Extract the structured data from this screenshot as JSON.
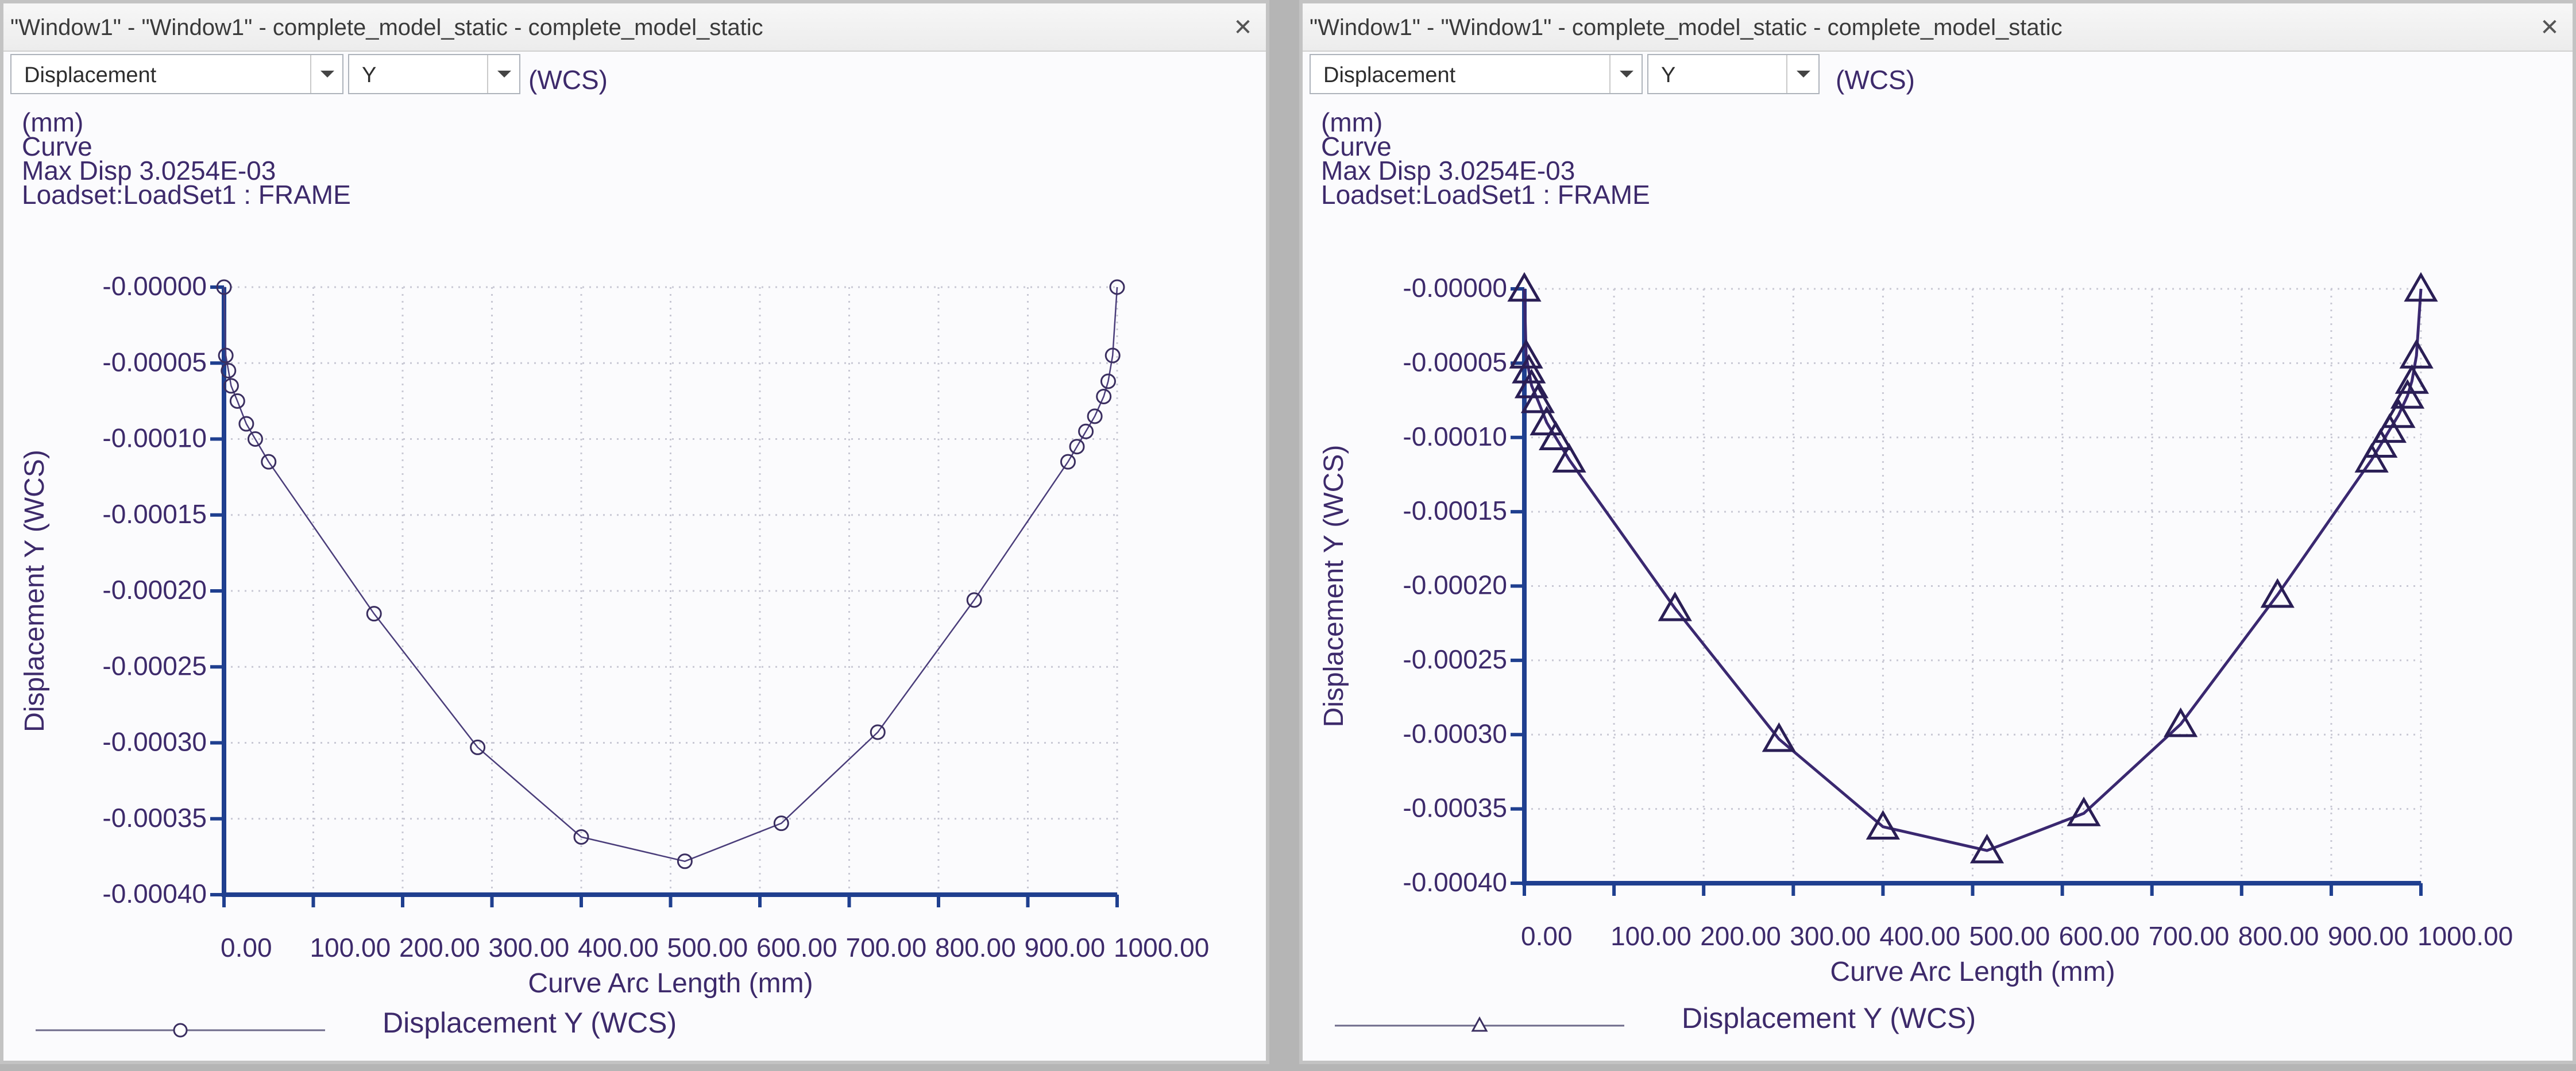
{
  "windows": [
    {
      "id": "left",
      "title": "\"Window1\" - \"Window1\" - complete_model_static - complete_model_static",
      "close_icon": "close-icon",
      "quantity": "Displacement",
      "component": "Y",
      "coord_system": "(WCS)",
      "info": {
        "units": "(mm)",
        "kind": "Curve",
        "max_disp": "Max Disp  3.0254E-03",
        "loadset": "Loadset:LoadSet1 :  FRAME"
      },
      "legend": {
        "label": "Displacement Y (WCS)",
        "marker": "circle"
      },
      "chart_data": {
        "type": "line",
        "xlabel": "Curve Arc Length (mm)",
        "ylabel": "Displacement Y (WCS)",
        "xlim": [
          0,
          1000
        ],
        "ylim": [
          -0.0004,
          0
        ],
        "x_ticks": [
          "0.00",
          "100.00",
          "200.00",
          "300.00",
          "400.00",
          "500.00",
          "600.00",
          "700.00",
          "800.00",
          "900.00",
          "1000.00"
        ],
        "y_ticks": [
          "-0.00000",
          "-0.00005",
          "-0.00010",
          "-0.00015",
          "-0.00020",
          "-0.00025",
          "-0.00030",
          "-0.00035",
          "-0.00040"
        ],
        "grid": true,
        "marker": "circle",
        "series": [
          {
            "name": "Displacement Y (WCS)",
            "x": [
              0,
              2,
              5,
              8,
              15,
              25,
              35,
              50,
              168,
              284,
              400,
              516,
              624,
              732,
              840,
              945,
              955,
              965,
              975,
              985,
              990,
              995,
              1000
            ],
            "y": [
              0,
              -4.5e-05,
              -5.5e-05,
              -6.5e-05,
              -7.5e-05,
              -9e-05,
              -0.0001,
              -0.000115,
              -0.000215,
              -0.000303,
              -0.000362,
              -0.000378,
              -0.000353,
              -0.000293,
              -0.000206,
              -0.000115,
              -0.000105,
              -9.5e-05,
              -8.5e-05,
              -7.2e-05,
              -6.2e-05,
              -4.5e-05,
              0
            ]
          }
        ]
      }
    },
    {
      "id": "right",
      "title": "\"Window1\" - \"Window1\" - complete_model_static - complete_model_static",
      "close_icon": "close-icon",
      "quantity": "Displacement",
      "component": "Y",
      "coord_system": "(WCS)",
      "info": {
        "units": "(mm)",
        "kind": "Curve",
        "max_disp": "Max Disp  3.0254E-03",
        "loadset": "Loadset:LoadSet1 :  FRAME"
      },
      "legend": {
        "label": "Displacement Y (WCS)",
        "marker": "triangle"
      },
      "chart_data": {
        "type": "line",
        "xlabel": "Curve Arc Length (mm)",
        "ylabel": "Displacement Y (WCS)",
        "xlim": [
          0,
          1000
        ],
        "ylim": [
          -0.0004,
          0
        ],
        "x_ticks": [
          "0.00",
          "100.00",
          "200.00",
          "300.00",
          "400.00",
          "500.00",
          "600.00",
          "700.00",
          "800.00",
          "900.00",
          "1000.00"
        ],
        "y_ticks": [
          "-0.00000",
          "-0.00005",
          "-0.00010",
          "-0.00015",
          "-0.00020",
          "-0.00025",
          "-0.00030",
          "-0.00035",
          "-0.00040"
        ],
        "grid": true,
        "marker": "triangle",
        "series": [
          {
            "name": "Displacement Y (WCS)",
            "x": [
              0,
              2,
              5,
              8,
              15,
              25,
              35,
              50,
              168,
              284,
              400,
              516,
              624,
              732,
              840,
              945,
              955,
              965,
              975,
              985,
              990,
              995,
              1000
            ],
            "y": [
              0,
              -4.5e-05,
              -5.5e-05,
              -6.5e-05,
              -7.5e-05,
              -9e-05,
              -0.0001,
              -0.000115,
              -0.000215,
              -0.000303,
              -0.000362,
              -0.000378,
              -0.000353,
              -0.000293,
              -0.000206,
              -0.000115,
              -0.000105,
              -9.5e-05,
              -8.5e-05,
              -7.2e-05,
              -6.2e-05,
              -4.5e-05,
              0
            ]
          }
        ]
      }
    }
  ]
}
